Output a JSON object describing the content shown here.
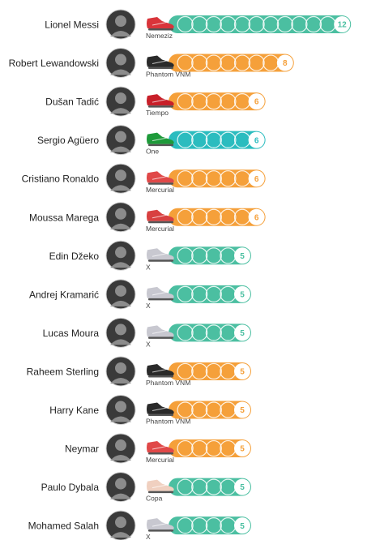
{
  "colors": {
    "adidas_teal": "#4bbfa1",
    "nike_orange": "#f5a03a",
    "puma_teal": "#2bbcbf",
    "ball_fill": "#ffffff",
    "name_text": "#222222",
    "boot_text": "#444444"
  },
  "chart_data": {
    "type": "bar",
    "title": "",
    "xlabel": "",
    "ylabel": "",
    "categories": [
      "Lionel Messi",
      "Robert Lewandowski",
      "Dušan Tadić",
      "Sergio Agüero",
      "Cristiano Ronaldo",
      "Moussa Marega",
      "Edin Džeko",
      "Andrej Kramarić",
      "Lucas Moura",
      "Raheem Sterling",
      "Harry Kane",
      "Neymar",
      "Paulo Dybala",
      "Mohamed Salah"
    ],
    "values": [
      12,
      8,
      6,
      6,
      6,
      6,
      5,
      5,
      5,
      5,
      5,
      5,
      5,
      5
    ],
    "value_labels": [
      "12",
      "8",
      "6",
      "6",
      "6",
      "6",
      "5",
      "5",
      "5",
      "5",
      "5",
      "5",
      "5",
      "5"
    ],
    "boots": [
      "Nemeziz",
      "Phantom VNM",
      "Tiempo",
      "One",
      "Mercurial",
      "Mercurial",
      "X",
      "X",
      "X",
      "Phantom VNM",
      "Phantom VNM",
      "Mercurial",
      "Copa",
      "X"
    ],
    "brand_colors": [
      "#4bbfa1",
      "#f5a03a",
      "#f5a03a",
      "#2bbcbf",
      "#f5a03a",
      "#f5a03a",
      "#4bbfa1",
      "#4bbfa1",
      "#4bbfa1",
      "#f5a03a",
      "#f5a03a",
      "#f5a03a",
      "#4bbfa1",
      "#4bbfa1"
    ],
    "boot_colors": [
      "#d9343a",
      "#2a2a2a",
      "#c8202a",
      "#1e9a3a",
      "#e04848",
      "#d84040",
      "#c8c8d0",
      "#c8c8d0",
      "#c8c8d0",
      "#2a2a2a",
      "#2a2a2a",
      "#e04848",
      "#f0d0c0",
      "#c8c8d0"
    ],
    "grid": false,
    "legend": "none"
  }
}
